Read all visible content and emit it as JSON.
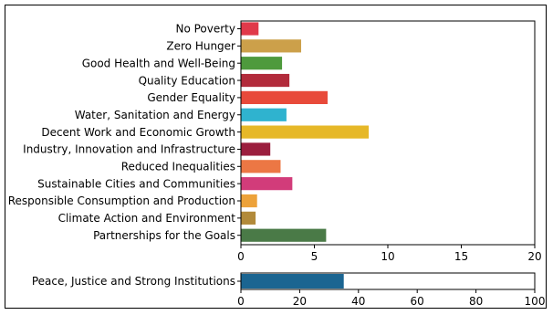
{
  "chart_data": [
    {
      "type": "bar",
      "orientation": "horizontal",
      "categories": [
        "No Poverty",
        "Zero Hunger",
        "Good Health and Well-Being",
        "Quality Education",
        "Gender Equality",
        "Water, Sanitation and Energy",
        "Decent Work and Economic Growth",
        "Industry, Innovation and Infrastructure",
        "Reduced Inequalities",
        "Sustainable Cities and Communities",
        "Responsible Consumption and Production",
        "Climate Action and Environment",
        "Partnerships for the Goals"
      ],
      "values": [
        1.2,
        4.1,
        2.8,
        3.3,
        5.9,
        3.1,
        8.7,
        2.0,
        2.7,
        3.5,
        1.1,
        1.0,
        5.8
      ],
      "colors": [
        "#e0394a",
        "#cca04a",
        "#4e9a3d",
        "#b22b3b",
        "#e84a3a",
        "#2fb3cf",
        "#e6b828",
        "#9b1e3e",
        "#ec7744",
        "#d23c7a",
        "#eda23a",
        "#b28a3a",
        "#4a7a47"
      ],
      "xlim": [
        0,
        20
      ],
      "xticks": [
        "0",
        "5",
        "10",
        "15",
        "20"
      ],
      "title": "",
      "xlabel": "",
      "ylabel": ""
    },
    {
      "type": "bar",
      "orientation": "horizontal",
      "categories": [
        "Peace, Justice and Strong Institutions"
      ],
      "values": [
        35
      ],
      "colors": [
        "#1b6591"
      ],
      "xlim": [
        0,
        100
      ],
      "xticks": [
        "0",
        "20",
        "40",
        "60",
        "80",
        "100"
      ],
      "title": "",
      "xlabel": "",
      "ylabel": ""
    }
  ]
}
